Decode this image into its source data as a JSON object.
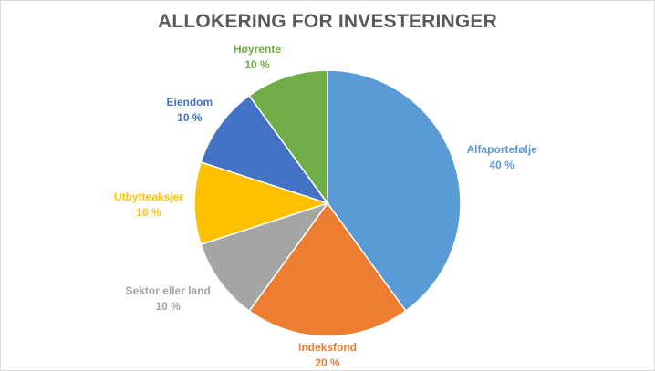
{
  "chart_data": {
    "type": "pie",
    "title": "ALLOKERING FOR INVESTERINGER",
    "slices": [
      {
        "name": "Alfaportefølje",
        "value": 40,
        "display": "40 %",
        "color": "#5B9BD5"
      },
      {
        "name": "Indeksfond",
        "value": 20,
        "display": "20 %",
        "color": "#ED7D31"
      },
      {
        "name": "Sektor eller land",
        "value": 10,
        "display": "10 %",
        "color": "#A5A5A5"
      },
      {
        "name": "Utbytteaksjer",
        "value": 10,
        "display": "10 %",
        "color": "#FFC000"
      },
      {
        "name": "Eiendom",
        "value": 10,
        "display": "10 %",
        "color": "#4472C4"
      },
      {
        "name": "Høyrente",
        "value": 10,
        "display": "10 %",
        "color": "#70AD47"
      }
    ],
    "legend": "none"
  }
}
